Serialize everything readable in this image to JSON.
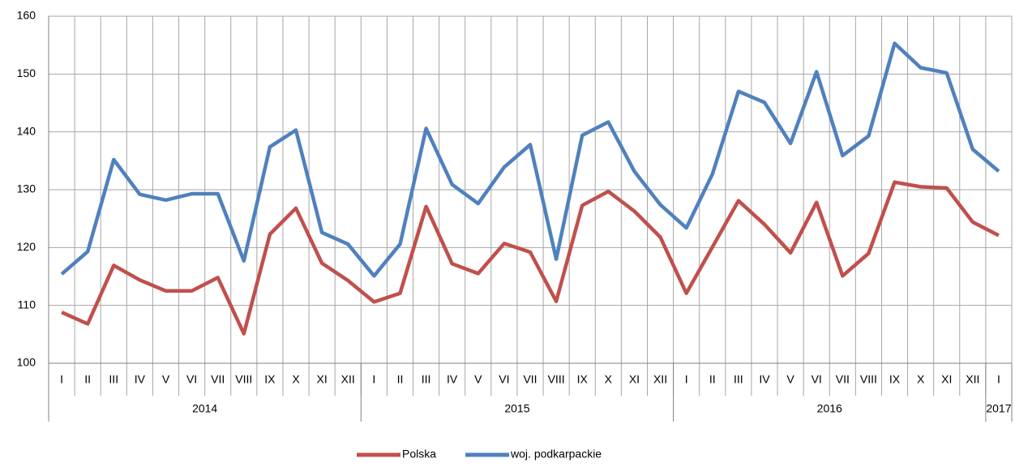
{
  "chart_data": {
    "type": "line",
    "categories": [
      "I",
      "II",
      "III",
      "IV",
      "V",
      "VI",
      "VII",
      "VIII",
      "IX",
      "X",
      "XI",
      "XII",
      "I",
      "II",
      "III",
      "IV",
      "V",
      "VI",
      "VII",
      "VIII",
      "IX",
      "X",
      "XI",
      "XII",
      "I",
      "II",
      "III",
      "IV",
      "V",
      "VI",
      "VII",
      "VIII",
      "IX",
      "X",
      "XI",
      "XII",
      "I"
    ],
    "years": [
      "2014",
      "2015",
      "2016",
      "2017"
    ],
    "series": [
      {
        "name": "Polska",
        "color": "#c0504d",
        "values": [
          108.8,
          106.8,
          116.9,
          114.4,
          112.5,
          112.5,
          114.8,
          105.1,
          122.3,
          126.8,
          117.3,
          114.3,
          110.6,
          112.1,
          127.1,
          117.2,
          115.5,
          120.7,
          119.2,
          110.7,
          127.3,
          129.7,
          126.3,
          121.8,
          112.1,
          120.1,
          128.1,
          124.0,
          119.1,
          127.8,
          115.1,
          119.0,
          131.3,
          130.5,
          130.3,
          124.4,
          122.1
        ]
      },
      {
        "name": "woj. podkarpackie",
        "color": "#4f81bd",
        "values": [
          115.4,
          119.3,
          135.2,
          129.2,
          128.2,
          129.3,
          129.3,
          117.7,
          137.4,
          140.3,
          122.6,
          120.6,
          115.1,
          120.6,
          140.6,
          130.9,
          127.6,
          133.9,
          137.8,
          118.0,
          139.4,
          141.7,
          133.2,
          127.4,
          123.4,
          132.7,
          147.0,
          145.1,
          138.0,
          150.4,
          135.9,
          139.3,
          155.3,
          151.1,
          150.2,
          137.0,
          133.2
        ]
      }
    ],
    "ylim": [
      100,
      160
    ],
    "yticks": [
      100,
      110,
      120,
      130,
      140,
      150,
      160
    ],
    "grid": true,
    "legend": "bottom"
  }
}
